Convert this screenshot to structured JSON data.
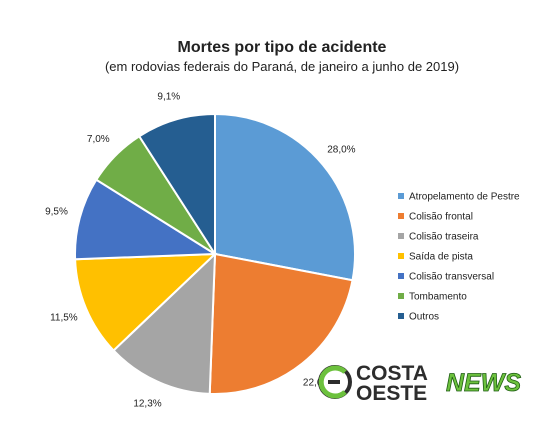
{
  "chart_data": {
    "type": "pie",
    "title": "Mortes por tipo de acidente",
    "subtitle": "(em rodovias federais do Paraná, de janeiro a junho de 2019)",
    "legend_position": "right",
    "slices": [
      {
        "name": "Atropelamento de Pestre",
        "value": 28.0,
        "label": "28,0%",
        "color": "#5b9bd5"
      },
      {
        "name": "Colisão frontal",
        "value": 22.6,
        "label": "22,6%",
        "color": "#ed7d31"
      },
      {
        "name": "Colisão traseira",
        "value": 12.3,
        "label": "12,3%",
        "color": "#a5a5a5"
      },
      {
        "name": "Saída de pista",
        "value": 11.5,
        "label": "11,5%",
        "color": "#ffc000"
      },
      {
        "name": "Colisão transversal",
        "value": 9.5,
        "label": "9,5%",
        "color": "#4472c4"
      },
      {
        "name": "Tombamento",
        "value": 7.0,
        "label": "7,0%",
        "color": "#70ad47"
      },
      {
        "name": "Outros",
        "value": 9.1,
        "label": "9,1%",
        "color": "#255e91"
      }
    ]
  },
  "watermark": {
    "line1": "COSTA",
    "line2": "OESTE",
    "accent": "NEWS",
    "colors": {
      "dark": "#2d2d2d",
      "green": "#6cc13d"
    }
  }
}
